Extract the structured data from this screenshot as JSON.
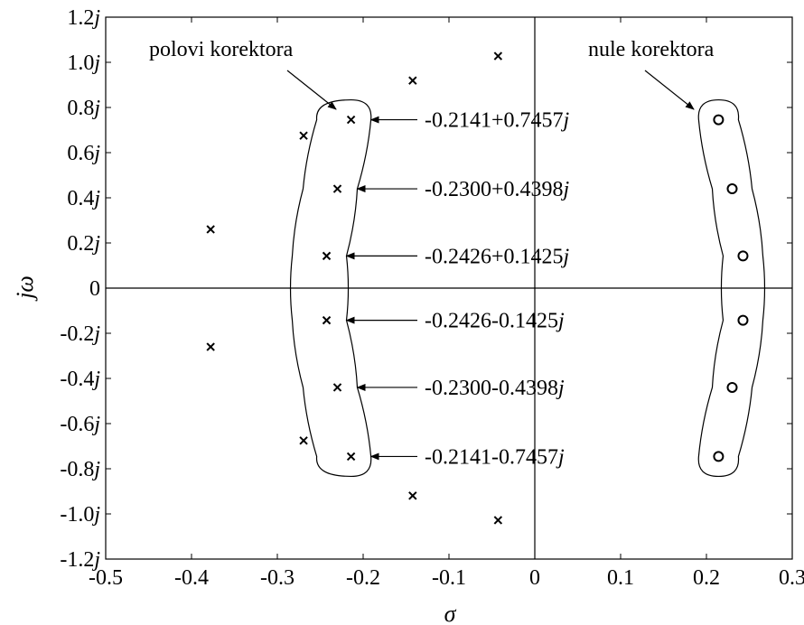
{
  "chart_data": {
    "type": "scatter",
    "title": "",
    "xlabel": "σ",
    "ylabel": "jω",
    "xlim": [
      -0.5,
      0.3
    ],
    "ylim": [
      -1.2,
      1.2
    ],
    "grid": false,
    "x_ticks": [
      {
        "value": -0.5,
        "label": "-0.5"
      },
      {
        "value": -0.4,
        "label": "-0.4"
      },
      {
        "value": -0.3,
        "label": "-0.3"
      },
      {
        "value": -0.2,
        "label": "-0.2"
      },
      {
        "value": -0.1,
        "label": "-0.1"
      },
      {
        "value": 0.0,
        "label": "0"
      },
      {
        "value": 0.1,
        "label": "0.1"
      },
      {
        "value": 0.2,
        "label": "0.2"
      },
      {
        "value": 0.3,
        "label": "0.3"
      }
    ],
    "y_ticks": [
      {
        "value": 1.2,
        "num": "1.2",
        "j": "j"
      },
      {
        "value": 1.0,
        "num": "1.0",
        "j": "j"
      },
      {
        "value": 0.8,
        "num": "0.8",
        "j": "j"
      },
      {
        "value": 0.6,
        "num": "0.6",
        "j": "j"
      },
      {
        "value": 0.4,
        "num": "0.4",
        "j": "j"
      },
      {
        "value": 0.2,
        "num": "0.2",
        "j": "j"
      },
      {
        "value": 0.0,
        "num": "0",
        "j": ""
      },
      {
        "value": -0.2,
        "num": "-0.2",
        "j": "j"
      },
      {
        "value": -0.4,
        "num": "-0.4",
        "j": "j"
      },
      {
        "value": -0.6,
        "num": "-0.6",
        "j": "j"
      },
      {
        "value": -0.8,
        "num": "-0.8",
        "j": "j"
      },
      {
        "value": -1.0,
        "num": "-1.0",
        "j": "j"
      },
      {
        "value": -1.2,
        "num": "-1.2",
        "j": "j"
      }
    ],
    "series": [
      {
        "marker": "x",
        "points": [
          {
            "x": -0.3777,
            "y": 0.2601
          },
          {
            "x": -0.3777,
            "y": -0.2601
          },
          {
            "x": -0.2694,
            "y": 0.6753
          },
          {
            "x": -0.2694,
            "y": -0.6753
          },
          {
            "x": -0.1423,
            "y": 0.9192
          },
          {
            "x": -0.1423,
            "y": -0.9192
          },
          {
            "x": -0.0428,
            "y": 1.0277
          },
          {
            "x": -0.0428,
            "y": -1.0277
          },
          {
            "x": -0.2141,
            "y": 0.7457
          },
          {
            "x": -0.2141,
            "y": -0.7457
          },
          {
            "x": -0.23,
            "y": 0.4398
          },
          {
            "x": -0.23,
            "y": -0.4398
          },
          {
            "x": -0.2426,
            "y": 0.1425
          },
          {
            "x": -0.2426,
            "y": -0.1425
          }
        ]
      },
      {
        "marker": "o",
        "points": [
          {
            "x": 0.2141,
            "y": 0.7457
          },
          {
            "x": 0.2141,
            "y": -0.7457
          },
          {
            "x": 0.23,
            "y": 0.4398
          },
          {
            "x": 0.23,
            "y": -0.4398
          },
          {
            "x": 0.2426,
            "y": 0.1425
          },
          {
            "x": 0.2426,
            "y": -0.1425
          }
        ]
      }
    ],
    "annotations": {
      "poles_label": "polovi korektora",
      "zeros_label": "nule korektora",
      "callouts": [
        {
          "x": -0.2141,
          "y": 0.7457,
          "num": "-0.2141+0.7457",
          "j": "j"
        },
        {
          "x": -0.23,
          "y": 0.4398,
          "num": "-0.2300+0.4398",
          "j": "j"
        },
        {
          "x": -0.2426,
          "y": 0.1425,
          "num": "-0.2426+0.1425",
          "j": "j"
        },
        {
          "x": -0.2426,
          "y": -0.1425,
          "num": "-0.2426-0.1425",
          "j": "j"
        },
        {
          "x": -0.23,
          "y": -0.4398,
          "num": "-0.2300-0.4398",
          "j": "j"
        },
        {
          "x": -0.2141,
          "y": -0.7457,
          "num": "-0.2141-0.7457",
          "j": "j"
        }
      ]
    }
  }
}
